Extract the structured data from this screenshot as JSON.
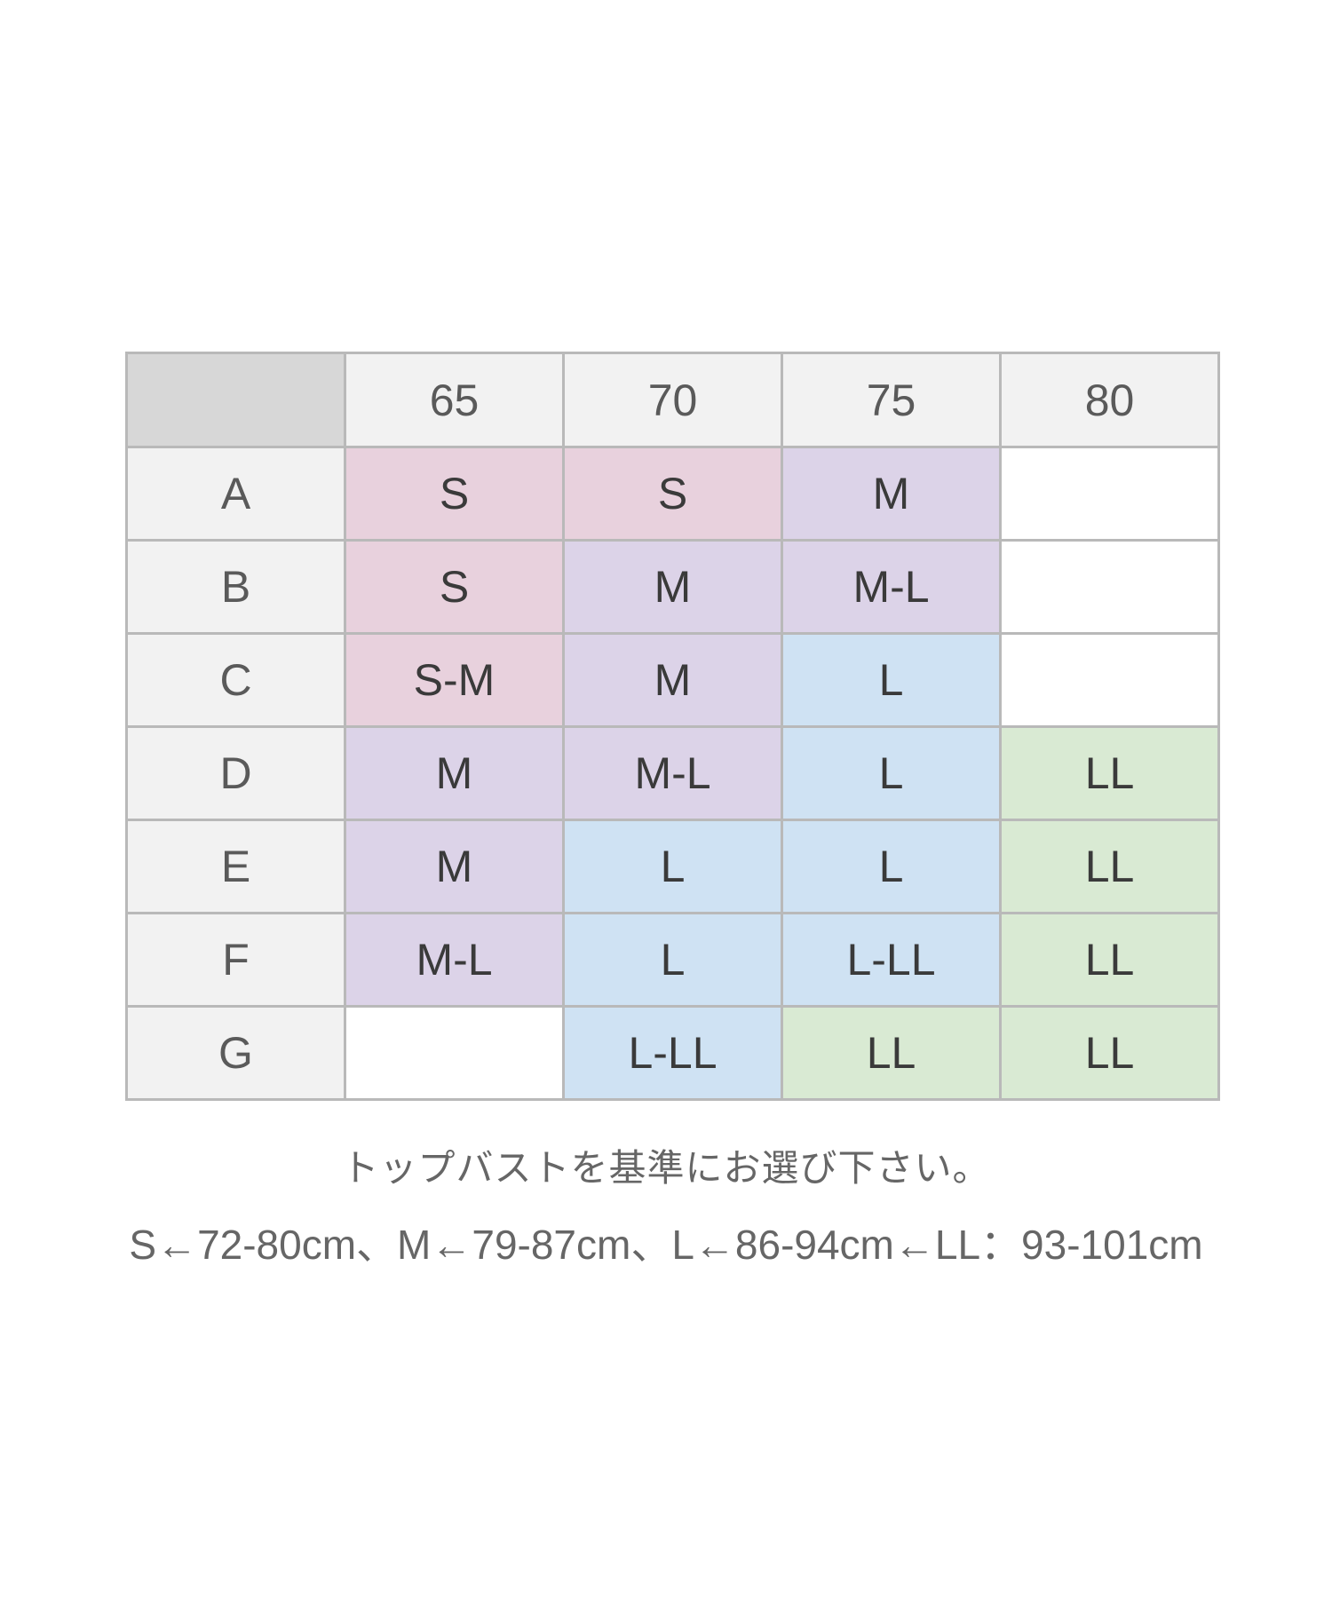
{
  "table": {
    "columns": [
      "65",
      "70",
      "75",
      "80"
    ],
    "rows": [
      {
        "label": "A",
        "cells": [
          "S",
          "S",
          "M",
          ""
        ]
      },
      {
        "label": "B",
        "cells": [
          "S",
          "M",
          "M-L",
          ""
        ]
      },
      {
        "label": "C",
        "cells": [
          "S-M",
          "M",
          "L",
          ""
        ]
      },
      {
        "label": "D",
        "cells": [
          "M",
          "M-L",
          "L",
          "LL"
        ]
      },
      {
        "label": "E",
        "cells": [
          "M",
          "L",
          "L",
          "LL"
        ]
      },
      {
        "label": "F",
        "cells": [
          "M-L",
          "L",
          "L-LL",
          "LL"
        ]
      },
      {
        "label": "G",
        "cells": [
          "",
          "L-LL",
          "LL",
          "LL"
        ]
      }
    ]
  },
  "colors": {
    "S": "#e8d1dd",
    "S-M": "#e8d1dd",
    "M": "#dcd3e8",
    "M-L": "#dcd3e8",
    "L": "#cfe2f3",
    "L-LL": "#cfe2f3",
    "LL": "#d9ead3",
    "empty": "#ffffff",
    "header": "#f2f2f2",
    "corner": "#d7d7d7",
    "border": "#b9b9b9"
  },
  "notes": {
    "line1": "トップバストを基準にお選び下さい。",
    "line2": "S←72-80cm、M←79-87cm、L←86-94cm←LL：93-101cm"
  }
}
